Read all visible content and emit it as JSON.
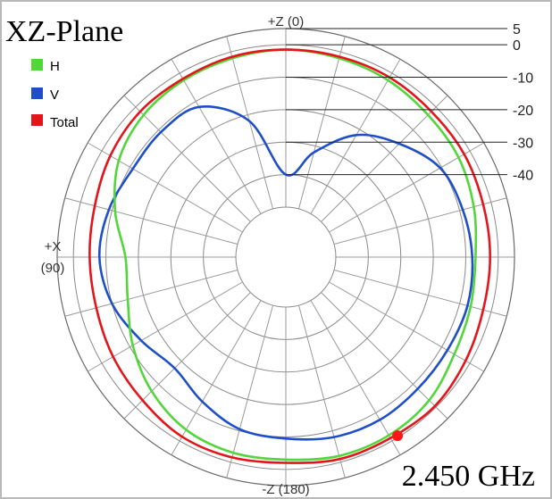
{
  "chart_data": {
    "type": "polar",
    "title": "XZ-Plane",
    "frequency_label": "2.450 GHz",
    "direction_labels": {
      "top": "+Z (0)",
      "left_name": "+X",
      "left_angle": "(90)",
      "bottom": "-Z (180)"
    },
    "radial_axis": {
      "ticks": [
        "5",
        "0",
        "-10",
        "-20",
        "-30",
        "-40"
      ],
      "tick_values": [
        5,
        0,
        -10,
        -20,
        -30,
        -40
      ],
      "range": [
        -50,
        5
      ],
      "unit": ""
    },
    "angle_step_deg": 15,
    "legend": [
      {
        "name": "H",
        "color": "#52d63a"
      },
      {
        "name": "V",
        "color": "#1f4fc8"
      },
      {
        "name": "Total",
        "color": "#e3151a"
      }
    ],
    "series": [
      {
        "name": "H",
        "color": "#52d63a",
        "points": [
          [
            0,
            -1.5
          ],
          [
            15,
            -2.0
          ],
          [
            30,
            -2.5
          ],
          [
            45,
            -3.5
          ],
          [
            60,
            -6.0
          ],
          [
            75,
            -11.0
          ],
          [
            90,
            -16.0
          ],
          [
            105,
            -15.0
          ],
          [
            120,
            -11.0
          ],
          [
            135,
            -7.0
          ],
          [
            150,
            -4.0
          ],
          [
            165,
            -3.0
          ],
          [
            180,
            -3.0
          ],
          [
            195,
            -2.0
          ],
          [
            210,
            -2.0
          ],
          [
            225,
            -3.0
          ],
          [
            240,
            -5.5
          ],
          [
            255,
            -6.5
          ],
          [
            270,
            -7.0
          ],
          [
            285,
            -5.5
          ],
          [
            300,
            -4.0
          ],
          [
            315,
            -3.5
          ],
          [
            330,
            -2.5
          ],
          [
            345,
            -2.0
          ]
        ]
      },
      {
        "name": "V",
        "color": "#1f4fc8",
        "points": [
          [
            0,
            -40
          ],
          [
            15,
            -22
          ],
          [
            30,
            -12
          ],
          [
            45,
            -11
          ],
          [
            60,
            -11
          ],
          [
            75,
            -9
          ],
          [
            90,
            -8
          ],
          [
            105,
            -10
          ],
          [
            120,
            -14
          ],
          [
            135,
            -17
          ],
          [
            150,
            -14
          ],
          [
            165,
            -10.5
          ],
          [
            180,
            -9.5
          ],
          [
            195,
            -8
          ],
          [
            210,
            -7.5
          ],
          [
            225,
            -8
          ],
          [
            240,
            -8
          ],
          [
            255,
            -7.5
          ],
          [
            270,
            -8
          ],
          [
            285,
            -9
          ],
          [
            300,
            -10.5
          ],
          [
            315,
            -16
          ],
          [
            330,
            -22
          ],
          [
            345,
            -32
          ]
        ]
      },
      {
        "name": "Total",
        "color": "#e3151a",
        "points": [
          [
            0,
            -1.5
          ],
          [
            15,
            -1.5
          ],
          [
            30,
            -2.0
          ],
          [
            45,
            -2.0
          ],
          [
            60,
            -3.0
          ],
          [
            75,
            -4.5
          ],
          [
            90,
            -5.0
          ],
          [
            105,
            -5.0
          ],
          [
            120,
            -4.0
          ],
          [
            135,
            -3.0
          ],
          [
            150,
            -1.5
          ],
          [
            165,
            -1.5
          ],
          [
            180,
            -2.0
          ],
          [
            195,
            -1.0
          ],
          [
            210,
            -1.0
          ],
          [
            225,
            -0.5
          ],
          [
            240,
            -1.5
          ],
          [
            255,
            -2.5
          ],
          [
            270,
            -2.5
          ],
          [
            285,
            -2.5
          ],
          [
            300,
            -2.0
          ],
          [
            315,
            -2.0
          ],
          [
            330,
            -1.5
          ],
          [
            345,
            -1.5
          ]
        ]
      }
    ],
    "marker": {
      "series": "Total",
      "angle": 212,
      "value": -0.5,
      "color": "#ff1a1a"
    }
  }
}
